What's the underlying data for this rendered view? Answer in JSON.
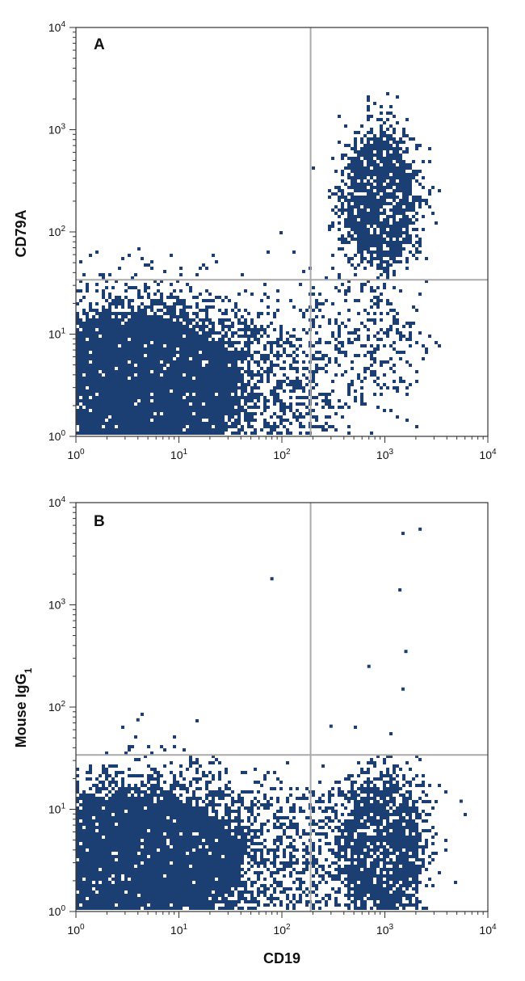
{
  "chart_data": [
    {
      "type": "scatter",
      "panel_label": "A",
      "xlabel": "",
      "ylabel": "CD79A",
      "x_scale": "log",
      "y_scale": "log",
      "xlim": [
        1,
        10000
      ],
      "ylim": [
        1,
        10000
      ],
      "x_ticks": [
        {
          "base": "10",
          "exp": "0"
        },
        {
          "base": "10",
          "exp": "1"
        },
        {
          "base": "10",
          "exp": "2"
        },
        {
          "base": "10",
          "exp": "3"
        },
        {
          "base": "10",
          "exp": "4"
        }
      ],
      "y_ticks": [
        {
          "base": "10",
          "exp": "0"
        },
        {
          "base": "10",
          "exp": "1"
        },
        {
          "base": "10",
          "exp": "2"
        },
        {
          "base": "10",
          "exp": "3"
        },
        {
          "base": "10",
          "exp": "4"
        }
      ],
      "quadrant_gate": {
        "x": 190,
        "y": 34
      },
      "grid": false,
      "point_color": "#1c3f73",
      "gate_color": "#aaaaaa",
      "populations": [
        {
          "x_center": 4,
          "y_center": 3,
          "x_spread_decades": 0.55,
          "y_spread_decades": 0.38,
          "density": 0.95
        },
        {
          "x_center": 40,
          "y_center": 3,
          "x_spread_decades": 0.4,
          "y_spread_decades": 0.33,
          "density": 0.45
        },
        {
          "x_center": 900,
          "y_center": 200,
          "x_spread_decades": 0.17,
          "y_spread_decades": 0.32,
          "density": 0.85
        },
        {
          "x_center": 500,
          "y_center": 8,
          "x_spread_decades": 0.28,
          "y_spread_decades": 0.3,
          "density": 0.25
        }
      ]
    },
    {
      "type": "scatter",
      "panel_label": "B",
      "xlabel": "CD19",
      "ylabel": "Mouse IgG",
      "ylabel_subscript": "1",
      "x_scale": "log",
      "y_scale": "log",
      "xlim": [
        1,
        10000
      ],
      "ylim": [
        1,
        10000
      ],
      "x_ticks": [
        {
          "base": "10",
          "exp": "0"
        },
        {
          "base": "10",
          "exp": "1"
        },
        {
          "base": "10",
          "exp": "2"
        },
        {
          "base": "10",
          "exp": "3"
        },
        {
          "base": "10",
          "exp": "4"
        }
      ],
      "y_ticks": [
        {
          "base": "10",
          "exp": "0"
        },
        {
          "base": "10",
          "exp": "1"
        },
        {
          "base": "10",
          "exp": "2"
        },
        {
          "base": "10",
          "exp": "3"
        },
        {
          "base": "10",
          "exp": "4"
        }
      ],
      "quadrant_gate": {
        "x": 190,
        "y": 34
      },
      "grid": false,
      "point_color": "#1c3f73",
      "gate_color": "#aaaaaa",
      "populations": [
        {
          "x_center": 4,
          "y_center": 3,
          "x_spread_decades": 0.55,
          "y_spread_decades": 0.36,
          "density": 0.95
        },
        {
          "x_center": 40,
          "y_center": 3,
          "x_spread_decades": 0.4,
          "y_spread_decades": 0.33,
          "density": 0.45
        },
        {
          "x_center": 900,
          "y_center": 4,
          "x_spread_decades": 0.2,
          "y_spread_decades": 0.33,
          "density": 0.85
        },
        {
          "x_center": 300,
          "y_center": 4,
          "x_spread_decades": 0.2,
          "y_spread_decades": 0.3,
          "density": 0.3
        }
      ],
      "outliers": [
        {
          "x": 1500,
          "y": 5000
        },
        {
          "x": 2200,
          "y": 5500
        },
        {
          "x": 80,
          "y": 1800
        },
        {
          "x": 1400,
          "y": 1400
        },
        {
          "x": 1600,
          "y": 350
        },
        {
          "x": 700,
          "y": 250
        },
        {
          "x": 1500,
          "y": 150
        },
        {
          "x": 4,
          "y": 75
        },
        {
          "x": 300,
          "y": 65
        },
        {
          "x": 5500,
          "y": 12
        }
      ]
    }
  ]
}
